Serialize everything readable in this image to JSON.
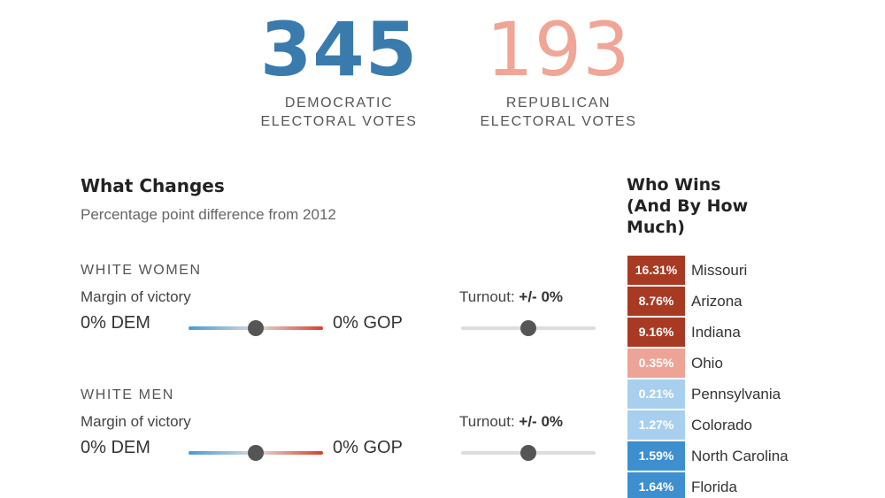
{
  "header": {
    "dem": {
      "votes": "345",
      "line1": "DEMOCRATIC",
      "line2": "ELECTORAL VOTES"
    },
    "rep": {
      "votes": "193",
      "line1": "REPUBLICAN",
      "line2": "ELECTORAL VOTES"
    }
  },
  "changes": {
    "title": "What Changes",
    "subtitle": "Percentage point difference from 2012",
    "groups": [
      {
        "title": "WHITE WOMEN",
        "margin_label": "Margin of victory",
        "dem_value": "0% DEM",
        "gop_value": "0% GOP",
        "margin_level": 0.5,
        "turnout_prefix": "Turnout: ",
        "turnout_value": "+/- 0%",
        "turnout_level": 0.5
      },
      {
        "title": "WHITE MEN",
        "margin_label": "Margin of victory",
        "dem_value": "0% DEM",
        "gop_value": "0% GOP",
        "margin_level": 0.5,
        "turnout_prefix": "Turnout: ",
        "turnout_value": "+/- 0%",
        "turnout_level": 0.5
      }
    ]
  },
  "wins": {
    "title_line1": "Who Wins",
    "title_line2": "(And By How",
    "title_line3": "Much)",
    "states": [
      {
        "value": "16.31%",
        "name": "Missouri",
        "color": "#a83a24"
      },
      {
        "value": "8.76%",
        "name": "Arizona",
        "color": "#a83a24"
      },
      {
        "value": "9.16%",
        "name": "Indiana",
        "color": "#a83a24"
      },
      {
        "value": "0.35%",
        "name": "Ohio",
        "color": "#eda496"
      },
      {
        "value": "0.21%",
        "name": "Pennsylvania",
        "color": "#a8cfee"
      },
      {
        "value": "1.27%",
        "name": "Colorado",
        "color": "#a8cfee"
      },
      {
        "value": "1.59%",
        "name": "North Carolina",
        "color": "#3d8fd0"
      },
      {
        "value": "1.64%",
        "name": "Florida",
        "color": "#3d8fd0"
      }
    ]
  }
}
